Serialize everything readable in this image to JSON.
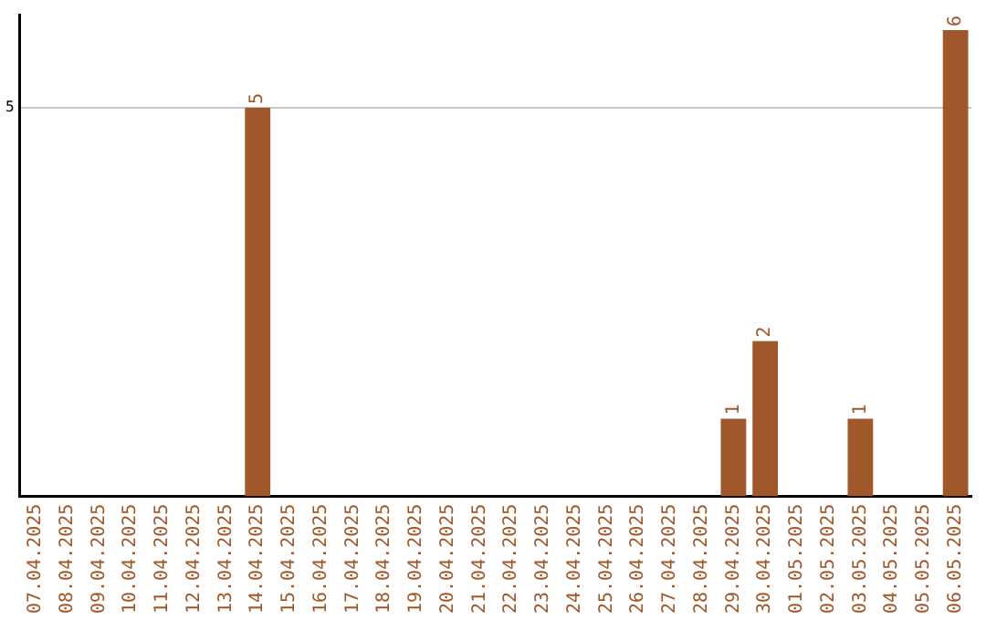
{
  "chart_data": {
    "type": "bar",
    "categories": [
      "07.04.2025",
      "08.04.2025",
      "09.04.2025",
      "10.04.2025",
      "11.04.2025",
      "12.04.2025",
      "13.04.2025",
      "14.04.2025",
      "15.04.2025",
      "16.04.2025",
      "17.04.2025",
      "18.04.2025",
      "19.04.2025",
      "20.04.2025",
      "21.04.2025",
      "22.04.2025",
      "23.04.2025",
      "24.04.2025",
      "25.04.2025",
      "26.04.2025",
      "27.04.2025",
      "28.04.2025",
      "29.04.2025",
      "30.04.2025",
      "01.05.2025",
      "02.05.2025",
      "03.05.2025",
      "04.05.2025",
      "05.05.2025",
      "06.05.2025"
    ],
    "values": [
      0,
      0,
      0,
      0,
      0,
      0,
      0,
      5,
      0,
      0,
      0,
      0,
      0,
      0,
      0,
      0,
      0,
      0,
      0,
      0,
      0,
      0,
      1,
      2,
      0,
      0,
      1,
      0,
      0,
      6
    ],
    "value_labels": [
      null,
      null,
      null,
      null,
      null,
      null,
      null,
      "5",
      null,
      null,
      null,
      null,
      null,
      null,
      null,
      null,
      null,
      null,
      null,
      null,
      null,
      null,
      "1",
      "2",
      null,
      null,
      "1",
      null,
      null,
      "6"
    ],
    "color": "#a0582a",
    "ylim": [
      0,
      6.2
    ],
    "yticks": [
      5
    ],
    "grid": "y",
    "legend": false
  }
}
